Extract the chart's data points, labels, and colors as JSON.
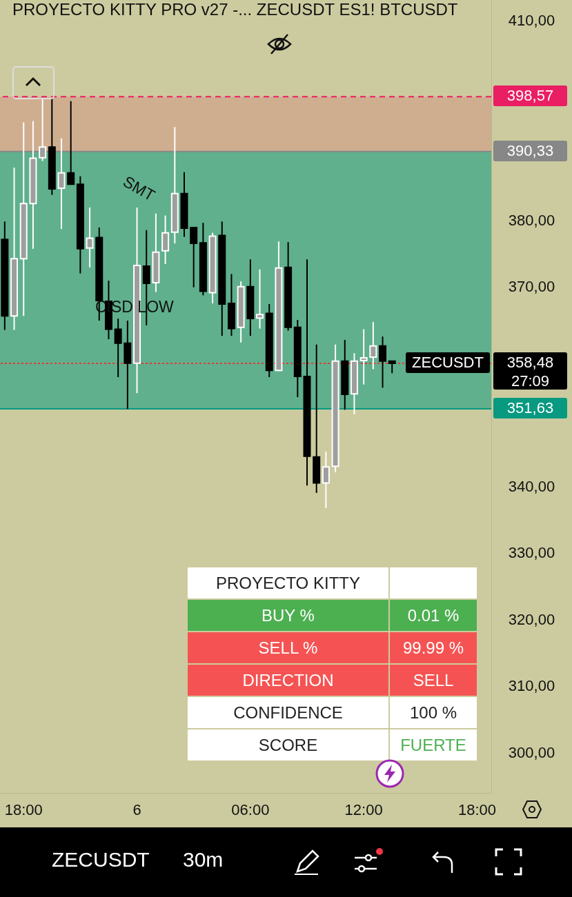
{
  "chart_data": {
    "type": "candlestick",
    "title": "PROYECTO KITTY PRO v27 -...  ZECUSDT ES1! BTCUSDT",
    "categories": [
      null,
      null,
      "18:00",
      null,
      null,
      null,
      null,
      null,
      null,
      null,
      null,
      null,
      null,
      null,
      "6",
      null,
      null,
      null,
      null,
      null,
      null,
      null,
      null,
      null,
      null,
      null,
      "06:00",
      null,
      null,
      null,
      null,
      null,
      null,
      null,
      null,
      null,
      null,
      null,
      "12:00",
      null,
      null,
      null,
      null,
      null,
      null,
      null,
      null,
      null,
      null,
      null,
      "18:00",
      null
    ],
    "ohlc": [
      [
        377.1,
        379.8,
        363.5,
        365.6
      ],
      [
        365.6,
        387.9,
        363.5,
        374.2
      ],
      [
        374.2,
        394.7,
        365.6,
        382.5
      ],
      [
        382.5,
        394.9,
        375.7,
        389.3
      ],
      [
        389.4,
        398.3,
        388.9,
        391.0
      ],
      [
        391.0,
        398.3,
        383.8,
        384.7
      ],
      [
        384.8,
        392.3,
        378.7,
        387.1
      ],
      [
        387.1,
        397.9,
        385.4,
        385.4
      ],
      [
        385.4,
        386.6,
        372.0,
        375.7
      ],
      [
        375.8,
        381.9,
        372.9,
        377.3
      ],
      [
        377.4,
        378.9,
        364.9,
        367.9
      ],
      [
        367.8,
        370.9,
        362.1,
        363.6
      ],
      [
        363.6,
        365.2,
        356.4,
        361.5
      ],
      [
        361.5,
        364.9,
        351.6,
        358.5
      ],
      [
        358.5,
        381.9,
        354.0,
        373.2
      ],
      [
        373.1,
        378.5,
        364.2,
        370.5
      ],
      [
        370.6,
        381.0,
        369.2,
        375.2
      ],
      [
        375.4,
        380.7,
        373.4,
        378.1
      ],
      [
        378.2,
        394.0,
        376.5,
        384.0
      ],
      [
        384.0,
        387.2,
        377.5,
        378.8
      ],
      [
        378.9,
        378.9,
        369.9,
        376.5
      ],
      [
        376.6,
        379.6,
        368.7,
        369.3
      ],
      [
        369.1,
        378.1,
        367.5,
        377.6
      ],
      [
        377.7,
        379.8,
        362.6,
        367.4
      ],
      [
        367.5,
        371.9,
        362.6,
        363.7
      ],
      [
        363.9,
        370.8,
        361.6,
        370.0
      ],
      [
        370.0,
        374.1,
        362.6,
        365.2
      ],
      [
        365.3,
        372.6,
        363.7,
        365.8
      ],
      [
        366.0,
        367.4,
        356.4,
        357.4
      ],
      [
        357.4,
        376.8,
        357.3,
        372.8
      ],
      [
        372.9,
        376.7,
        363.4,
        363.9
      ],
      [
        363.9,
        365.0,
        353.4,
        356.5
      ],
      [
        356.5,
        374.1,
        340.1,
        344.5
      ],
      [
        344.4,
        361.3,
        339.0,
        340.5
      ],
      [
        340.5,
        345.2,
        336.7,
        342.9
      ],
      [
        343.0,
        361.3,
        342.1,
        358.8
      ],
      [
        358.8,
        362.0,
        351.5,
        353.8
      ],
      [
        353.9,
        360.0,
        350.8,
        358.8
      ],
      [
        358.9,
        363.6,
        355.3,
        359.3
      ],
      [
        359.4,
        364.7,
        357.6,
        361.1
      ],
      [
        361.1,
        362.5,
        354.8,
        358.8
      ],
      [
        358.8,
        358.8,
        357.0,
        358.48
      ],
      null,
      null,
      null,
      null,
      null,
      null,
      null,
      null,
      null,
      null
    ],
    "colors": [
      "#000000",
      "#9e9e9e",
      "#9e9e9e",
      "#9e9e9e",
      "#9e9e9e",
      "#000000",
      "#9e9e9e",
      "#000000",
      "#000000",
      "#9e9e9e",
      "#000000",
      "#000000",
      "#000000",
      "#000000",
      "#9e9e9e",
      "#000000",
      "#9e9e9e",
      "#9e9e9e",
      "#9e9e9e",
      "#000000",
      "#000000",
      "#000000",
      "#9e9e9e",
      "#000000",
      "#000000",
      "#9e9e9e",
      "#000000",
      "#9e9e9e",
      "#000000",
      "#9e9e9e",
      "#000000",
      "#000000",
      "#000000",
      "#000000",
      "#9e9e9e",
      "#9e9e9e",
      "#000000",
      "#9e9e9e",
      "#9e9e9e",
      "#9e9e9e",
      "#000000",
      "#000000",
      null,
      null,
      null,
      null,
      null,
      null,
      null,
      null,
      null,
      null
    ],
    "ylim": [
      293.9,
      413.1
    ],
    "yticks": [
      {
        "value": 300,
        "label": "300,00"
      },
      {
        "value": 310,
        "label": "310,00"
      },
      {
        "value": 320,
        "label": "320,00"
      },
      {
        "value": 330,
        "label": "330,00"
      },
      {
        "value": 340,
        "label": "340,00"
      },
      {
        "value": 370,
        "label": "370,00"
      },
      {
        "value": 380,
        "label": "380,00"
      },
      {
        "value": 390,
        "label": null
      },
      {
        "value": 410,
        "label": "410,00"
      }
    ],
    "bands": [
      {
        "axis": "y",
        "from": 390.33,
        "to": 398.57,
        "color": "#cfac8f"
      },
      {
        "axis": "y",
        "from": 351.63,
        "to": 390.33,
        "color": "#5aae8c"
      }
    ],
    "ref_lines": [
      {
        "axis": "y",
        "value": 398.57,
        "label": "398,57",
        "color": "#e91e63",
        "line_style": "dashed"
      },
      {
        "axis": "y",
        "value": 390.33,
        "label": "390,33",
        "color": "#878787",
        "line_style": "solid"
      },
      {
        "axis": "y",
        "value": 358.48,
        "label": "358,48",
        "color": "#e53935",
        "line_style": "dotted"
      },
      {
        "axis": "y",
        "value": 351.63,
        "label": "351,63",
        "color": "#089981",
        "line_style": "solid"
      }
    ],
    "annotations": [
      "SMT",
      "CISD LOW",
      "ZECUSDT",
      "27:09",
      "PROYECTO KITTY",
      "BUY %",
      "0.01 %",
      "SELL %",
      "99.99 %",
      "DIRECTION",
      "SELL",
      "CONFIDENCE",
      "100 %",
      "SCORE",
      "FUERTE",
      "ZECUSDT",
      "30m"
    ]
  }
}
